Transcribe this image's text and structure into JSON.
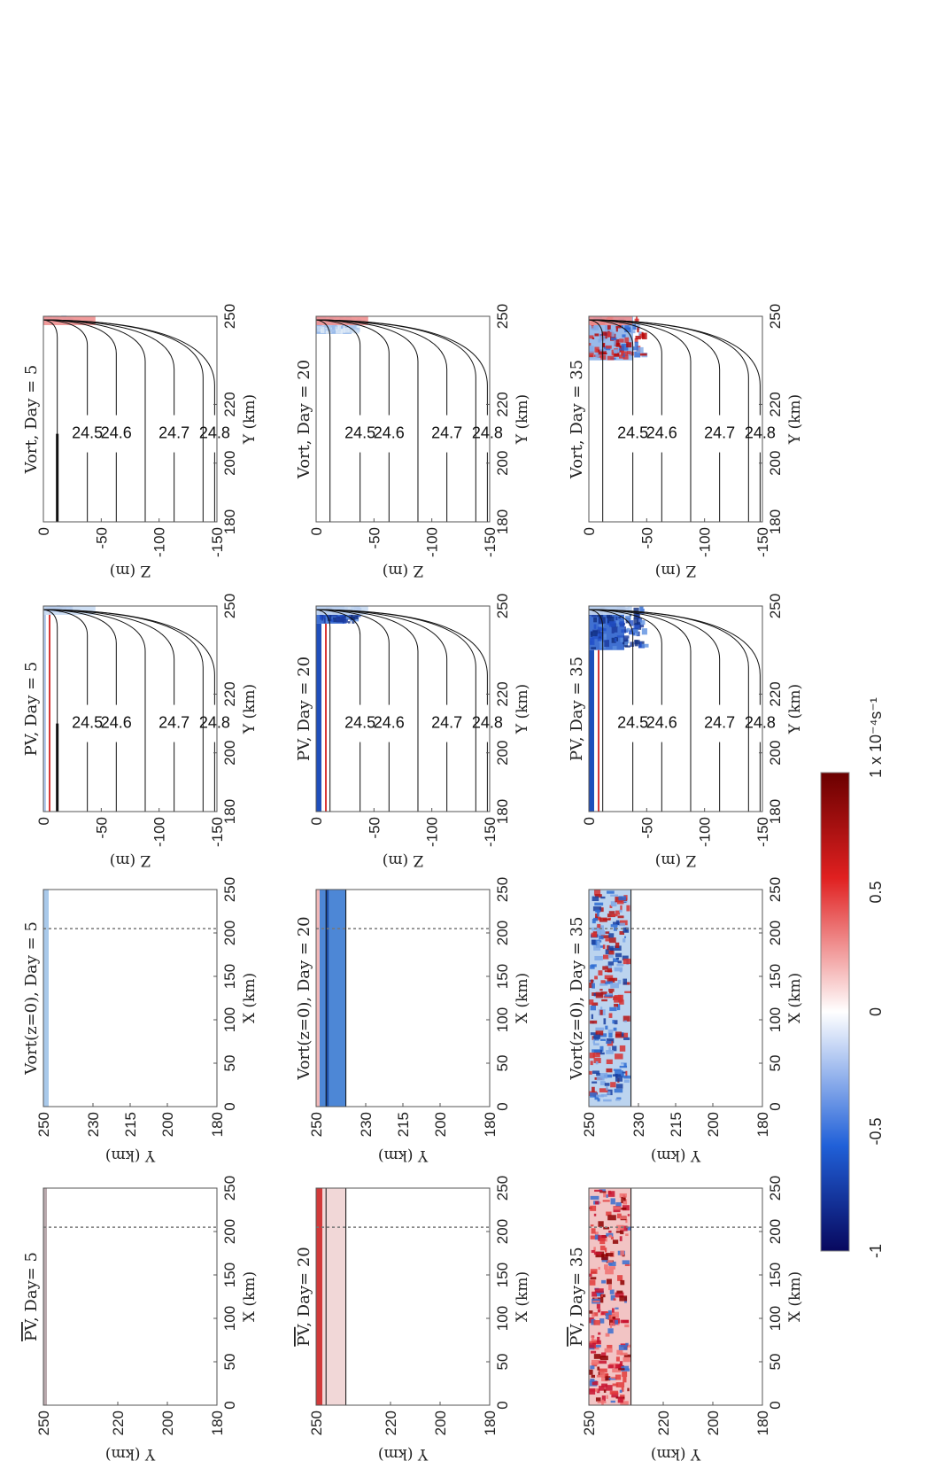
{
  "chart_data": [
    {
      "type": "heatmap",
      "title": "PV, Day= 5",
      "title_overline_text": "PV",
      "title_suffix": ", Day= 5",
      "xlabel": "X (km)",
      "ylabel": "Y (km)",
      "x_ticks": [
        "0",
        "50",
        "100",
        "150",
        "200",
        "250"
      ],
      "y_ticks": [
        "250",
        "220",
        "200",
        "180"
      ],
      "xlim": [
        0,
        250
      ],
      "ylim": [
        180,
        250
      ],
      "dashed_line_x": 205,
      "variable": "PV",
      "day": 5,
      "field": "weak",
      "front_y": null
    },
    {
      "type": "heatmap",
      "title": "Vort(z=0), Day = 5",
      "xlabel": "X (km)",
      "ylabel": "Y (km)",
      "x_ticks": [
        "0",
        "50",
        "100",
        "150",
        "200",
        "250"
      ],
      "y_ticks": [
        "250",
        "230",
        "215",
        "200",
        "180"
      ],
      "xlim": [
        0,
        250
      ],
      "ylim": [
        180,
        250
      ],
      "dashed_line_x": 205,
      "variable": "Vort(z=0)",
      "day": 5,
      "field": "weak",
      "front_y": null
    },
    {
      "type": "heatmap",
      "title": "PV, Day = 5",
      "xlabel": "Y (km)",
      "ylabel": "Z (m)",
      "x_ticks": [
        "180",
        "200",
        "220",
        "250"
      ],
      "y_ticks": [
        "0",
        "-50",
        "-100",
        "-150"
      ],
      "xlim": [
        180,
        250
      ],
      "ylim": [
        -150,
        0
      ],
      "contour_levels": [
        "24.5",
        "24.6",
        "24.7",
        "24.8"
      ],
      "variable": "PV",
      "day": 5
    },
    {
      "type": "heatmap",
      "title": "Vort, Day = 5",
      "xlabel": "Y (km)",
      "ylabel": "Z (m)",
      "x_ticks": [
        "180",
        "200",
        "220",
        "250"
      ],
      "y_ticks": [
        "0",
        "-50",
        "-100",
        "-150"
      ],
      "xlim": [
        180,
        250
      ],
      "ylim": [
        -150,
        0
      ],
      "contour_levels": [
        "24.5",
        "24.6",
        "24.7",
        "24.8"
      ],
      "variable": "Vort",
      "day": 5
    },
    {
      "type": "heatmap",
      "title": "PV, Day= 20",
      "title_overline_text": "PV",
      "title_suffix": ", Day= 20",
      "xlabel": "X (km)",
      "ylabel": "Y (km)",
      "x_ticks": [
        "0",
        "50",
        "100",
        "150",
        "200",
        "250"
      ],
      "y_ticks": [
        "250",
        "220",
        "200",
        "180"
      ],
      "xlim": [
        0,
        250
      ],
      "ylim": [
        180,
        250
      ],
      "dashed_line_x": 205,
      "variable": "PV",
      "day": 20,
      "field": "band",
      "front_y": [
        238,
        246
      ]
    },
    {
      "type": "heatmap",
      "title": "Vort(z=0), Day = 20",
      "xlabel": "X (km)",
      "ylabel": "Y (km)",
      "x_ticks": [
        "0",
        "50",
        "100",
        "150",
        "200",
        "250"
      ],
      "y_ticks": [
        "250",
        "230",
        "215",
        "200",
        "180"
      ],
      "xlim": [
        0,
        250
      ],
      "ylim": [
        180,
        250
      ],
      "dashed_line_x": 205,
      "variable": "Vort(z=0)",
      "day": 20,
      "field": "band",
      "front_y": [
        238,
        246
      ]
    },
    {
      "type": "heatmap",
      "title": "PV, Day = 20",
      "xlabel": "Y (km)",
      "ylabel": "Z (m)",
      "x_ticks": [
        "180",
        "200",
        "220",
        "250"
      ],
      "y_ticks": [
        "0",
        "-50",
        "-100",
        "-150"
      ],
      "xlim": [
        180,
        250
      ],
      "ylim": [
        -150,
        0
      ],
      "contour_levels": [
        "24.5",
        "24.6",
        "24.7",
        "24.8"
      ],
      "variable": "PV",
      "day": 20
    },
    {
      "type": "heatmap",
      "title": "Vort, Day = 20",
      "xlabel": "Y (km)",
      "ylabel": "Z (m)",
      "x_ticks": [
        "180",
        "200",
        "220",
        "250"
      ],
      "y_ticks": [
        "0",
        "-50",
        "-100",
        "-150"
      ],
      "xlim": [
        180,
        250
      ],
      "ylim": [
        -150,
        0
      ],
      "contour_levels": [
        "24.5",
        "24.6",
        "24.7",
        "24.8"
      ],
      "variable": "Vort",
      "day": 20
    },
    {
      "type": "heatmap",
      "title": "PV, Day= 35",
      "title_overline_text": "PV",
      "title_suffix": ", Day= 35",
      "xlabel": "X (km)",
      "ylabel": "Y (km)",
      "x_ticks": [
        "0",
        "50",
        "100",
        "150",
        "200",
        "250"
      ],
      "y_ticks": [
        "250",
        "220",
        "200",
        "180"
      ],
      "xlim": [
        0,
        250
      ],
      "ylim": [
        180,
        250
      ],
      "dashed_line_x": 205,
      "variable": "PV",
      "day": 35,
      "field": "eddies",
      "front_y": [
        233,
        250
      ]
    },
    {
      "type": "heatmap",
      "title": "Vort(z=0), Day = 35",
      "xlabel": "X (km)",
      "ylabel": "Y (km)",
      "x_ticks": [
        "0",
        "50",
        "100",
        "150",
        "200",
        "250"
      ],
      "y_ticks": [
        "250",
        "230",
        "215",
        "200",
        "180"
      ],
      "xlim": [
        0,
        250
      ],
      "ylim": [
        180,
        250
      ],
      "dashed_line_x": 205,
      "variable": "Vort(z=0)",
      "day": 35,
      "field": "eddies",
      "front_y": [
        233,
        250
      ]
    },
    {
      "type": "heatmap",
      "title": "PV, Day = 35",
      "xlabel": "Y (km)",
      "ylabel": "Z (m)",
      "x_ticks": [
        "180",
        "200",
        "220",
        "250"
      ],
      "y_ticks": [
        "0",
        "-50",
        "-100",
        "-150"
      ],
      "xlim": [
        180,
        250
      ],
      "ylim": [
        -150,
        0
      ],
      "contour_levels": [
        "24.5",
        "24.6",
        "24.7",
        "24.8"
      ],
      "variable": "PV",
      "day": 35
    },
    {
      "type": "heatmap",
      "title": "Vort, Day = 35",
      "xlabel": "Y (km)",
      "ylabel": "Z (m)",
      "x_ticks": [
        "180",
        "200",
        "220",
        "250"
      ],
      "y_ticks": [
        "0",
        "-50",
        "-100",
        "-150"
      ],
      "xlim": [
        180,
        250
      ],
      "ylim": [
        -150,
        0
      ],
      "contour_levels": [
        "24.5",
        "24.6",
        "24.7",
        "24.8"
      ],
      "variable": "Vort",
      "day": 35
    }
  ],
  "colorbar": {
    "ticks": [
      "-1",
      "-0.5",
      "0",
      "0.5",
      "1 x 10⁻⁴s⁻¹"
    ],
    "range": [
      -1,
      1
    ],
    "colors": [
      "#08085e",
      "#2060d8",
      "#ffffff",
      "#e02020",
      "#6a0000"
    ]
  }
}
